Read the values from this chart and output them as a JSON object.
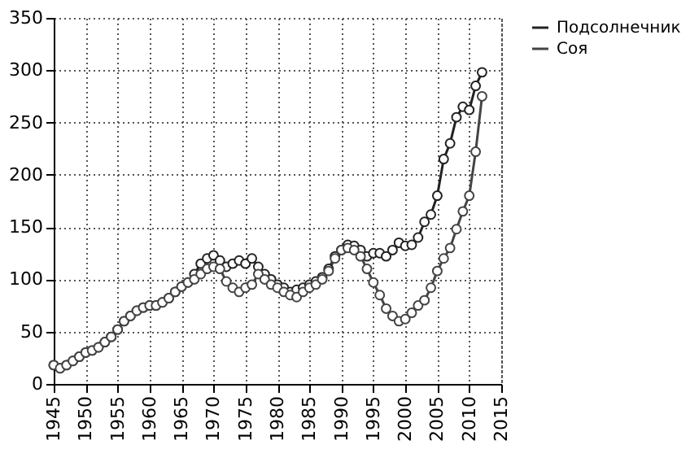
{
  "chart_data": {
    "type": "line",
    "x": [
      1945,
      1946,
      1947,
      1948,
      1949,
      1950,
      1951,
      1952,
      1953,
      1954,
      1955,
      1956,
      1957,
      1958,
      1959,
      1960,
      1961,
      1962,
      1963,
      1964,
      1965,
      1966,
      1967,
      1968,
      1969,
      1970,
      1971,
      1972,
      1973,
      1974,
      1975,
      1976,
      1977,
      1978,
      1979,
      1980,
      1981,
      1982,
      1983,
      1984,
      1985,
      1986,
      1987,
      1988,
      1989,
      1990,
      1991,
      1992,
      1993,
      1994,
      1995,
      1996,
      1997,
      1998,
      1999,
      2000,
      2001,
      2002,
      2003,
      2004,
      2005,
      2006,
      2007,
      2008,
      2009,
      2010,
      2011,
      2012
    ],
    "series": [
      {
        "name": "Подсолнечник",
        "color": "#222222",
        "values": [
          18,
          15,
          18,
          22,
          26,
          30,
          32,
          35,
          40,
          45,
          52,
          60,
          65,
          70,
          73,
          75,
          75,
          78,
          82,
          88,
          93,
          97,
          105,
          115,
          120,
          123,
          118,
          112,
          115,
          118,
          115,
          120,
          112,
          105,
          100,
          95,
          92,
          88,
          90,
          92,
          95,
          98,
          102,
          110,
          122,
          128,
          133,
          132,
          128,
          122,
          125,
          125,
          122,
          128,
          135,
          132,
          133,
          140,
          155,
          162,
          180,
          215,
          230,
          255,
          265,
          262,
          285,
          298
        ]
      },
      {
        "name": "Соя",
        "color": "#444444",
        "values": [
          18,
          15,
          18,
          22,
          26,
          30,
          32,
          35,
          40,
          45,
          52,
          60,
          65,
          70,
          73,
          75,
          75,
          78,
          82,
          88,
          93,
          97,
          100,
          105,
          110,
          112,
          110,
          98,
          92,
          88,
          92,
          95,
          105,
          100,
          95,
          92,
          88,
          85,
          83,
          88,
          92,
          95,
          100,
          108,
          120,
          128,
          130,
          128,
          122,
          110,
          97,
          85,
          72,
          65,
          60,
          62,
          68,
          75,
          80,
          92,
          108,
          120,
          130,
          148,
          165,
          180,
          222,
          275
        ]
      }
    ],
    "xlim": [
      1945,
      2015
    ],
    "xticks": [
      1945,
      1950,
      1955,
      1960,
      1965,
      1970,
      1975,
      1980,
      1985,
      1990,
      1995,
      2000,
      2005,
      2010,
      2015
    ],
    "ylim": [
      0,
      350
    ],
    "yticks": [
      0,
      50,
      100,
      150,
      200,
      250,
      300,
      350
    ],
    "grid": true,
    "legend": "right",
    "marker": "circle",
    "line_style": "solid"
  }
}
